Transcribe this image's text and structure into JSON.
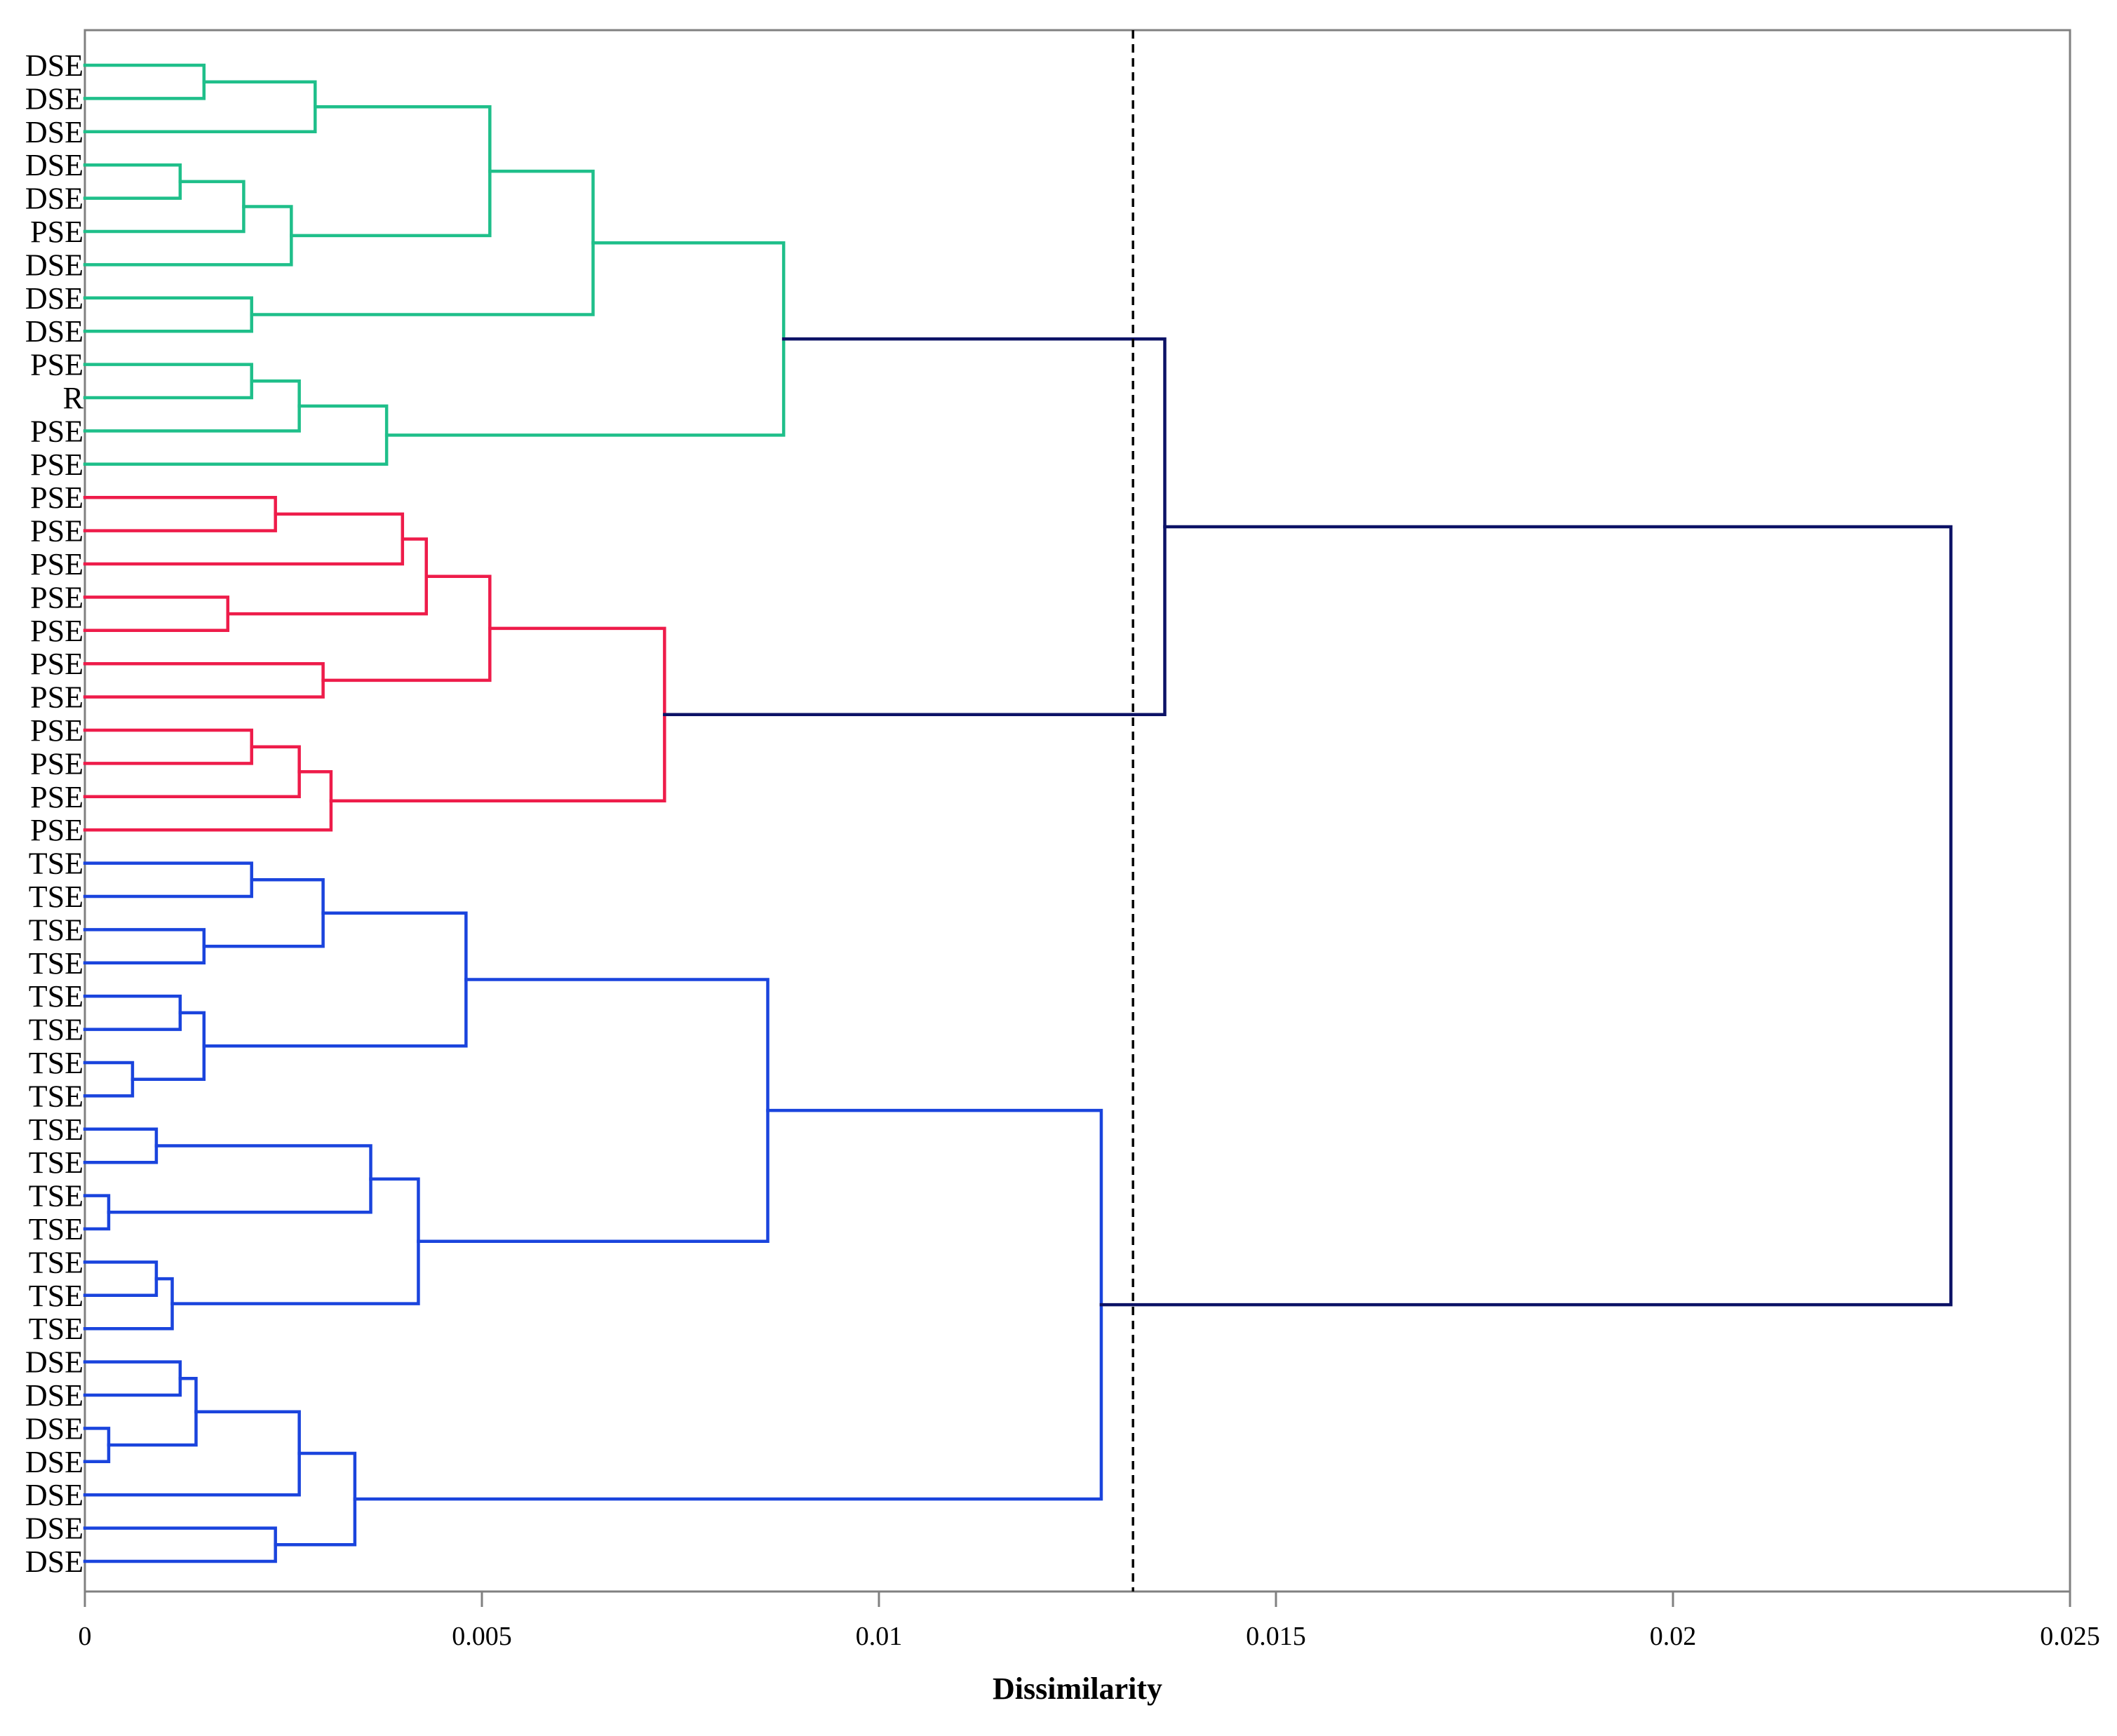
{
  "chart_data": {
    "type": "dendrogram",
    "title": "",
    "xlabel": "Dissimilarity",
    "ylabel": "",
    "xlim": [
      0,
      0.025
    ],
    "xticks": [
      0,
      0.005,
      0.01,
      0.015,
      0.02,
      0.025
    ],
    "xtick_labels": [
      "0",
      "0.005",
      "0.01",
      "0.015",
      "0.02",
      "0.025"
    ],
    "cutoff": 0.0132,
    "colors": {
      "green": "#1fbf8a",
      "red": "#ee1c4a",
      "blue": "#1a44dd",
      "navy": "#0c1266",
      "cutoff": "#000000"
    },
    "leaves": [
      "DSE",
      "DSE",
      "DSE",
      "DSE",
      "DSE",
      "PSE",
      "DSE",
      "DSE",
      "DSE",
      "PSE",
      "R",
      "PSE",
      "PSE",
      "PSE",
      "PSE",
      "PSE",
      "PSE",
      "PSE",
      "PSE",
      "PSE",
      "PSE",
      "PSE",
      "PSE",
      "PSE",
      "TSE",
      "TSE",
      "TSE",
      "TSE",
      "TSE",
      "TSE",
      "TSE",
      "TSE",
      "TSE",
      "TSE",
      "TSE",
      "TSE",
      "TSE",
      "TSE",
      "TSE",
      "DSE",
      "DSE",
      "DSE",
      "DSE",
      "DSE",
      "DSE",
      "DSE"
    ],
    "merges": [
      {
        "a": "L0",
        "b": "L1",
        "h": 0.0015,
        "color": "green"
      },
      {
        "a": "M0",
        "b": "L2",
        "h": 0.0029,
        "color": "green"
      },
      {
        "a": "L3",
        "b": "L4",
        "h": 0.0012,
        "color": "green"
      },
      {
        "a": "M2",
        "b": "L5",
        "h": 0.002,
        "color": "green"
      },
      {
        "a": "M3",
        "b": "L6",
        "h": 0.0026,
        "color": "green"
      },
      {
        "a": "M1",
        "b": "M4",
        "h": 0.0051,
        "color": "green"
      },
      {
        "a": "L7",
        "b": "L8",
        "h": 0.0021,
        "color": "green"
      },
      {
        "a": "M5",
        "b": "M6",
        "h": 0.0064,
        "color": "green"
      },
      {
        "a": "L9",
        "b": "L10",
        "h": 0.0021,
        "color": "green"
      },
      {
        "a": "M8",
        "b": "L11",
        "h": 0.0027,
        "color": "green"
      },
      {
        "a": "M9",
        "b": "L12",
        "h": 0.0038,
        "color": "green"
      },
      {
        "a": "M7",
        "b": "M10",
        "h": 0.0088,
        "color": "green"
      },
      {
        "a": "L13",
        "b": "L14",
        "h": 0.0024,
        "color": "red"
      },
      {
        "a": "M12",
        "b": "L15",
        "h": 0.004,
        "color": "red"
      },
      {
        "a": "L16",
        "b": "L17",
        "h": 0.0018,
        "color": "red"
      },
      {
        "a": "M13",
        "b": "M14",
        "h": 0.0043,
        "color": "red"
      },
      {
        "a": "L18",
        "b": "L19",
        "h": 0.003,
        "color": "red"
      },
      {
        "a": "M15",
        "b": "M16",
        "h": 0.0051,
        "color": "red"
      },
      {
        "a": "L20",
        "b": "L21",
        "h": 0.0021,
        "color": "red"
      },
      {
        "a": "M18",
        "b": "L22",
        "h": 0.0027,
        "color": "red"
      },
      {
        "a": "M19",
        "b": "L23",
        "h": 0.0031,
        "color": "red"
      },
      {
        "a": "M17",
        "b": "M20",
        "h": 0.0073,
        "color": "red"
      },
      {
        "a": "L24",
        "b": "L25",
        "h": 0.0021,
        "color": "blue"
      },
      {
        "a": "L26",
        "b": "L27",
        "h": 0.0015,
        "color": "blue"
      },
      {
        "a": "M22",
        "b": "M23",
        "h": 0.003,
        "color": "blue"
      },
      {
        "a": "L28",
        "b": "L29",
        "h": 0.0012,
        "color": "blue"
      },
      {
        "a": "L30",
        "b": "L31",
        "h": 0.0006,
        "color": "blue"
      },
      {
        "a": "M25",
        "b": "M26",
        "h": 0.0015,
        "color": "blue"
      },
      {
        "a": "M24",
        "b": "M27",
        "h": 0.0048,
        "color": "blue"
      },
      {
        "a": "L32",
        "b": "L33",
        "h": 0.0009,
        "color": "blue"
      },
      {
        "a": "L34",
        "b": "L35",
        "h": 0.0003,
        "color": "blue"
      },
      {
        "a": "M29",
        "b": "M30",
        "h": 0.0036,
        "color": "blue"
      },
      {
        "a": "L36",
        "b": "L37",
        "h": 0.0009,
        "color": "blue"
      },
      {
        "a": "M32",
        "b": "L38",
        "h": 0.0011,
        "color": "blue"
      },
      {
        "a": "M31",
        "b": "M33",
        "h": 0.0042,
        "color": "blue"
      },
      {
        "a": "M28",
        "b": "M34",
        "h": 0.0086,
        "color": "blue"
      },
      {
        "a": "L39",
        "b": "L40",
        "h": 0.0012,
        "color": "blue"
      },
      {
        "a": "L41",
        "b": "L42",
        "h": 0.0003,
        "color": "blue"
      },
      {
        "a": "M36",
        "b": "M37",
        "h": 0.0014,
        "color": "blue"
      },
      {
        "a": "M38",
        "b": "L43",
        "h": 0.0027,
        "color": "blue"
      },
      {
        "a": "L44",
        "b": "L45",
        "h": 0.0024,
        "color": "blue"
      },
      {
        "a": "M39",
        "b": "M40",
        "h": 0.0034,
        "color": "blue"
      },
      {
        "a": "M35",
        "b": "M41",
        "h": 0.0128,
        "color": "blue"
      },
      {
        "a": "M11",
        "b": "M21",
        "h": 0.0136,
        "color": "navy"
      },
      {
        "a": "M43",
        "b": "M42",
        "h": 0.0235,
        "color": "navy"
      }
    ]
  }
}
